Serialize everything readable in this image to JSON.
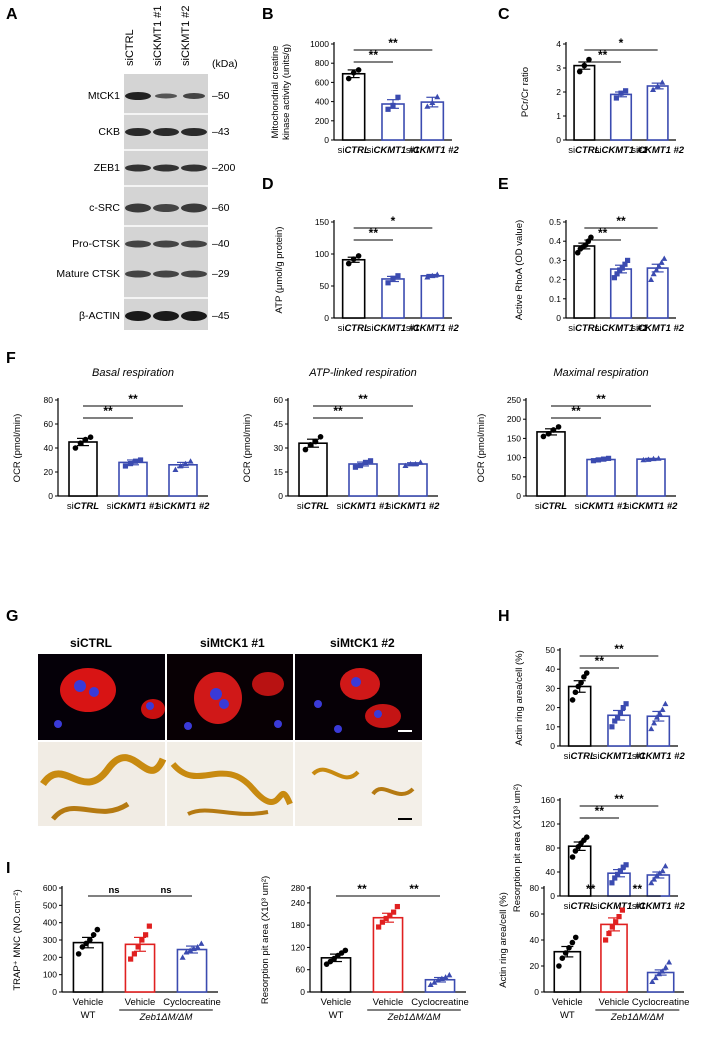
{
  "panels": {
    "A": "A",
    "B": "B",
    "C": "C",
    "D": "D",
    "E": "E",
    "F": "F",
    "G": "G",
    "H": "H",
    "I": "I"
  },
  "blot": {
    "lanes": [
      "siCTRL",
      "siCKMT1 #1",
      "siCKMT1 #2"
    ],
    "kda_label": "(kDa)",
    "rows": [
      {
        "label": "MtCK1",
        "kda": "50"
      },
      {
        "label": "CKB",
        "kda": "43"
      },
      {
        "label": "ZEB1",
        "kda": "200"
      },
      {
        "label": "c-SRC",
        "kda": "60"
      },
      {
        "label": "Pro-CTSK",
        "kda": "40"
      },
      {
        "label": "Mature CTSK",
        "kda": "29"
      },
      {
        "label": "β-ACTIN",
        "kda": "45"
      }
    ]
  },
  "micro": {
    "columns": [
      "siCTRL",
      "siMtCK1 #1",
      "siMtCK1 #2"
    ]
  },
  "chart_data": [
    {
      "panel": "B",
      "type": "bar",
      "ylabel": "Mitochondrial creatine kinase activity (units/g)",
      "categories": [
        "siCTRL",
        "siCKMT1 #1",
        "siCKMT1 #2"
      ],
      "values": [
        690,
        375,
        395
      ],
      "errors": [
        40,
        45,
        50
      ],
      "ylim": [
        0,
        1000
      ],
      "yticks": [
        0,
        200,
        400,
        600,
        800,
        1000
      ],
      "points": [
        [
          640,
          700,
          730
        ],
        [
          320,
          360,
          445
        ],
        [
          350,
          390,
          450
        ]
      ],
      "colors": [
        "#000000",
        "#3b4bb0",
        "#3b4bb0"
      ],
      "sig": [
        {
          "from": 0,
          "to": 1,
          "label": "**"
        },
        {
          "from": 0,
          "to": 2,
          "label": "**"
        }
      ]
    },
    {
      "panel": "C",
      "type": "bar",
      "ylabel": "PCr/Cr ratio",
      "categories": [
        "siCTRL",
        "siCKMT1 #1",
        "siCKMT1 #2"
      ],
      "values": [
        3.1,
        1.9,
        2.25
      ],
      "errors": [
        0.15,
        0.1,
        0.12
      ],
      "ylim": [
        0,
        4
      ],
      "yticks": [
        0,
        1,
        2,
        3,
        4
      ],
      "points": [
        [
          2.85,
          3.1,
          3.35
        ],
        [
          1.75,
          1.95,
          2.05
        ],
        [
          2.1,
          2.25,
          2.4
        ]
      ],
      "colors": [
        "#000000",
        "#3b4bb0",
        "#3b4bb0"
      ],
      "sig": [
        {
          "from": 0,
          "to": 1,
          "label": "**"
        },
        {
          "from": 0,
          "to": 2,
          "label": "*"
        }
      ]
    },
    {
      "panel": "D",
      "type": "bar",
      "ylabel": "ATP (μmol/g protein)",
      "categories": [
        "siCTRL",
        "siCKMT1 #1",
        "siCKMT1 #2"
      ],
      "values": [
        91,
        61,
        66
      ],
      "errors": [
        4,
        4,
        2
      ],
      "ylim": [
        0,
        150
      ],
      "yticks": [
        0,
        50,
        100,
        150
      ],
      "points": [
        [
          85,
          92,
          97
        ],
        [
          55,
          62,
          66
        ],
        [
          64,
          66,
          68
        ]
      ],
      "colors": [
        "#000000",
        "#3b4bb0",
        "#3b4bb0"
      ],
      "sig": [
        {
          "from": 0,
          "to": 1,
          "label": "**"
        },
        {
          "from": 0,
          "to": 2,
          "label": "*"
        }
      ]
    },
    {
      "panel": "E",
      "type": "bar",
      "ylabel": "Active RhoA (OD value)",
      "categories": [
        "siCTRL",
        "siCKMT1 #1",
        "siCKMT1 #2"
      ],
      "values": [
        0.375,
        0.255,
        0.26
      ],
      "errors": [
        0.015,
        0.02,
        0.02
      ],
      "ylim": [
        0,
        0.5
      ],
      "yticks": [
        0.0,
        0.1,
        0.2,
        0.3,
        0.4,
        0.5
      ],
      "points": [
        [
          0.34,
          0.36,
          0.37,
          0.38,
          0.4,
          0.42
        ],
        [
          0.21,
          0.23,
          0.25,
          0.26,
          0.28,
          0.3
        ],
        [
          0.2,
          0.23,
          0.25,
          0.27,
          0.29,
          0.31
        ]
      ],
      "colors": [
        "#000000",
        "#3b4bb0",
        "#3b4bb0"
      ],
      "sig": [
        {
          "from": 0,
          "to": 1,
          "label": "**"
        },
        {
          "from": 0,
          "to": 2,
          "label": "**"
        }
      ]
    },
    {
      "panel": "F1",
      "type": "bar",
      "title": "Basal respiration",
      "ylabel": "OCR (pmol/min)",
      "categories": [
        "siCTRL",
        "siCKMT1 #1",
        "siCKMT1 #2"
      ],
      "values": [
        45,
        28,
        26
      ],
      "errors": [
        3,
        2,
        2
      ],
      "ylim": [
        0,
        80
      ],
      "yticks": [
        0,
        20,
        40,
        60,
        80
      ],
      "points": [
        [
          40,
          44,
          47,
          49
        ],
        [
          25,
          27,
          29,
          30
        ],
        [
          22,
          25,
          27,
          29
        ]
      ],
      "colors": [
        "#000000",
        "#3b4bb0",
        "#3b4bb0"
      ],
      "sig": [
        {
          "from": 0,
          "to": 1,
          "label": "**"
        },
        {
          "from": 0,
          "to": 2,
          "label": "**"
        }
      ]
    },
    {
      "panel": "F2",
      "type": "bar",
      "title": "ATP-linked respiration",
      "ylabel": "OCR (pmol/min)",
      "categories": [
        "siCTRL",
        "siCKMT1 #1",
        "siCKMT1 #2"
      ],
      "values": [
        33,
        20,
        20
      ],
      "errors": [
        2.5,
        1.2,
        0.8
      ],
      "ylim": [
        0,
        60
      ],
      "yticks": [
        0,
        15,
        30,
        45,
        60
      ],
      "points": [
        [
          29,
          32,
          34,
          37
        ],
        [
          18,
          19,
          21,
          22
        ],
        [
          19,
          20,
          20,
          21
        ]
      ],
      "colors": [
        "#000000",
        "#3b4bb0",
        "#3b4bb0"
      ],
      "sig": [
        {
          "from": 0,
          "to": 1,
          "label": "**"
        },
        {
          "from": 0,
          "to": 2,
          "label": "**"
        }
      ]
    },
    {
      "panel": "F3",
      "type": "bar",
      "title": "Maximal respiration",
      "ylabel": "OCR (pmol/min)",
      "categories": [
        "siCTRL",
        "siCKMT1 #1",
        "siCKMT1 #2"
      ],
      "values": [
        167,
        95,
        96
      ],
      "errors": [
        8,
        3,
        2
      ],
      "ylim": [
        0,
        250
      ],
      "yticks": [
        0,
        50,
        100,
        150,
        200,
        250
      ],
      "points": [
        [
          155,
          162,
          172,
          180
        ],
        [
          92,
          94,
          96,
          98
        ],
        [
          94,
          95,
          97,
          98
        ]
      ],
      "colors": [
        "#000000",
        "#3b4bb0",
        "#3b4bb0"
      ],
      "sig": [
        {
          "from": 0,
          "to": 1,
          "label": "**"
        },
        {
          "from": 0,
          "to": 2,
          "label": "**"
        }
      ]
    },
    {
      "panel": "H1",
      "type": "bar",
      "ylabel": "Actin ring area/cell (%)",
      "categories": [
        "siCTRL",
        "siCKMT1 #1",
        "siCKMT1 #2"
      ],
      "values": [
        31,
        16,
        15.5
      ],
      "errors": [
        3,
        2.5,
        2.5
      ],
      "ylim": [
        0,
        50
      ],
      "yticks": [
        0,
        10,
        20,
        30,
        40,
        50
      ],
      "points": [
        [
          24,
          28,
          31,
          33,
          36,
          38
        ],
        [
          10,
          13,
          15,
          17,
          20,
          22
        ],
        [
          9,
          12,
          15,
          17,
          19,
          22
        ]
      ],
      "colors": [
        "#000000",
        "#3b4bb0",
        "#3b4bb0"
      ],
      "sig": [
        {
          "from": 0,
          "to": 1,
          "label": "**"
        },
        {
          "from": 0,
          "to": 2,
          "label": "**"
        }
      ]
    },
    {
      "panel": "H2",
      "type": "bar",
      "ylabel": "Resorption pit area (X10³ um²)",
      "categories": [
        "siCTRL",
        "siCKMT1 #1",
        "siCKMT1 #2"
      ],
      "values": [
        83,
        38,
        35
      ],
      "errors": [
        7,
        6,
        5
      ],
      "ylim": [
        0,
        160
      ],
      "yticks": [
        0,
        40,
        80,
        120,
        160
      ],
      "points": [
        [
          65,
          75,
          82,
          88,
          93,
          98
        ],
        [
          22,
          30,
          36,
          42,
          48,
          52
        ],
        [
          22,
          28,
          34,
          38,
          42,
          50
        ]
      ],
      "colors": [
        "#000000",
        "#3b4bb0",
        "#3b4bb0"
      ],
      "sig": [
        {
          "from": 0,
          "to": 1,
          "label": "**"
        },
        {
          "from": 0,
          "to": 2,
          "label": "**"
        }
      ]
    },
    {
      "panel": "I1",
      "type": "bar",
      "ylabel": "TRAP⁺ MNC (NO.cm⁻²)",
      "categories": [
        "Vehicle",
        "Vehicle",
        "Cyclocreatine"
      ],
      "groups": [
        "WT",
        "Zeb1ΔM/ΔM"
      ],
      "values": [
        285,
        275,
        245
      ],
      "errors": [
        30,
        40,
        20
      ],
      "ylim": [
        0,
        600
      ],
      "yticks": [
        0,
        100,
        200,
        300,
        400,
        500,
        600
      ],
      "points": [
        [
          220,
          260,
          280,
          300,
          330,
          360
        ],
        [
          190,
          220,
          260,
          300,
          330,
          380
        ],
        [
          200,
          230,
          240,
          250,
          260,
          280
        ]
      ],
      "colors": [
        "#000000",
        "#e02020",
        "#3b4bb0"
      ],
      "sig": [
        {
          "from": 0,
          "to": 1,
          "label": "ns"
        },
        {
          "from": 1,
          "to": 2,
          "label": "ns"
        }
      ]
    },
    {
      "panel": "I2",
      "type": "bar",
      "ylabel": "Resorption pit area (X10³ um²)",
      "categories": [
        "Vehicle",
        "Vehicle",
        "Cyclocreatine"
      ],
      "groups": [
        "WT",
        "Zeb1ΔM/ΔM"
      ],
      "values": [
        92,
        200,
        33
      ],
      "errors": [
        10,
        12,
        6
      ],
      "ylim": [
        0,
        280
      ],
      "yticks": [
        0,
        60,
        120,
        180,
        240,
        280
      ],
      "points": [
        [
          75,
          82,
          90,
          98,
          105,
          112
        ],
        [
          175,
          188,
          198,
          205,
          215,
          230
        ],
        [
          20,
          26,
          32,
          36,
          40,
          46
        ]
      ],
      "colors": [
        "#000000",
        "#e02020",
        "#3b4bb0"
      ],
      "sig": [
        {
          "from": 0,
          "to": 1,
          "label": "**"
        },
        {
          "from": 1,
          "to": 2,
          "label": "**"
        }
      ]
    },
    {
      "panel": "I3",
      "type": "bar",
      "ylabel": "Actin ring area/cell (%)",
      "categories": [
        "Vehicle",
        "Vehicle",
        "Cyclocreatine"
      ],
      "groups": [
        "WT",
        "Zeb1ΔM/ΔM"
      ],
      "values": [
        31,
        52,
        15
      ],
      "errors": [
        4,
        5,
        2
      ],
      "ylim": [
        0,
        80
      ],
      "yticks": [
        0,
        20,
        40,
        60,
        80
      ],
      "points": [
        [
          20,
          26,
          30,
          34,
          38,
          42
        ],
        [
          40,
          45,
          50,
          54,
          58,
          63
        ],
        [
          8,
          11,
          14,
          16,
          19,
          23
        ]
      ],
      "colors": [
        "#000000",
        "#e02020",
        "#3b4bb0"
      ],
      "sig": [
        {
          "from": 0,
          "to": 1,
          "label": "**"
        },
        {
          "from": 1,
          "to": 2,
          "label": "**"
        }
      ]
    }
  ]
}
